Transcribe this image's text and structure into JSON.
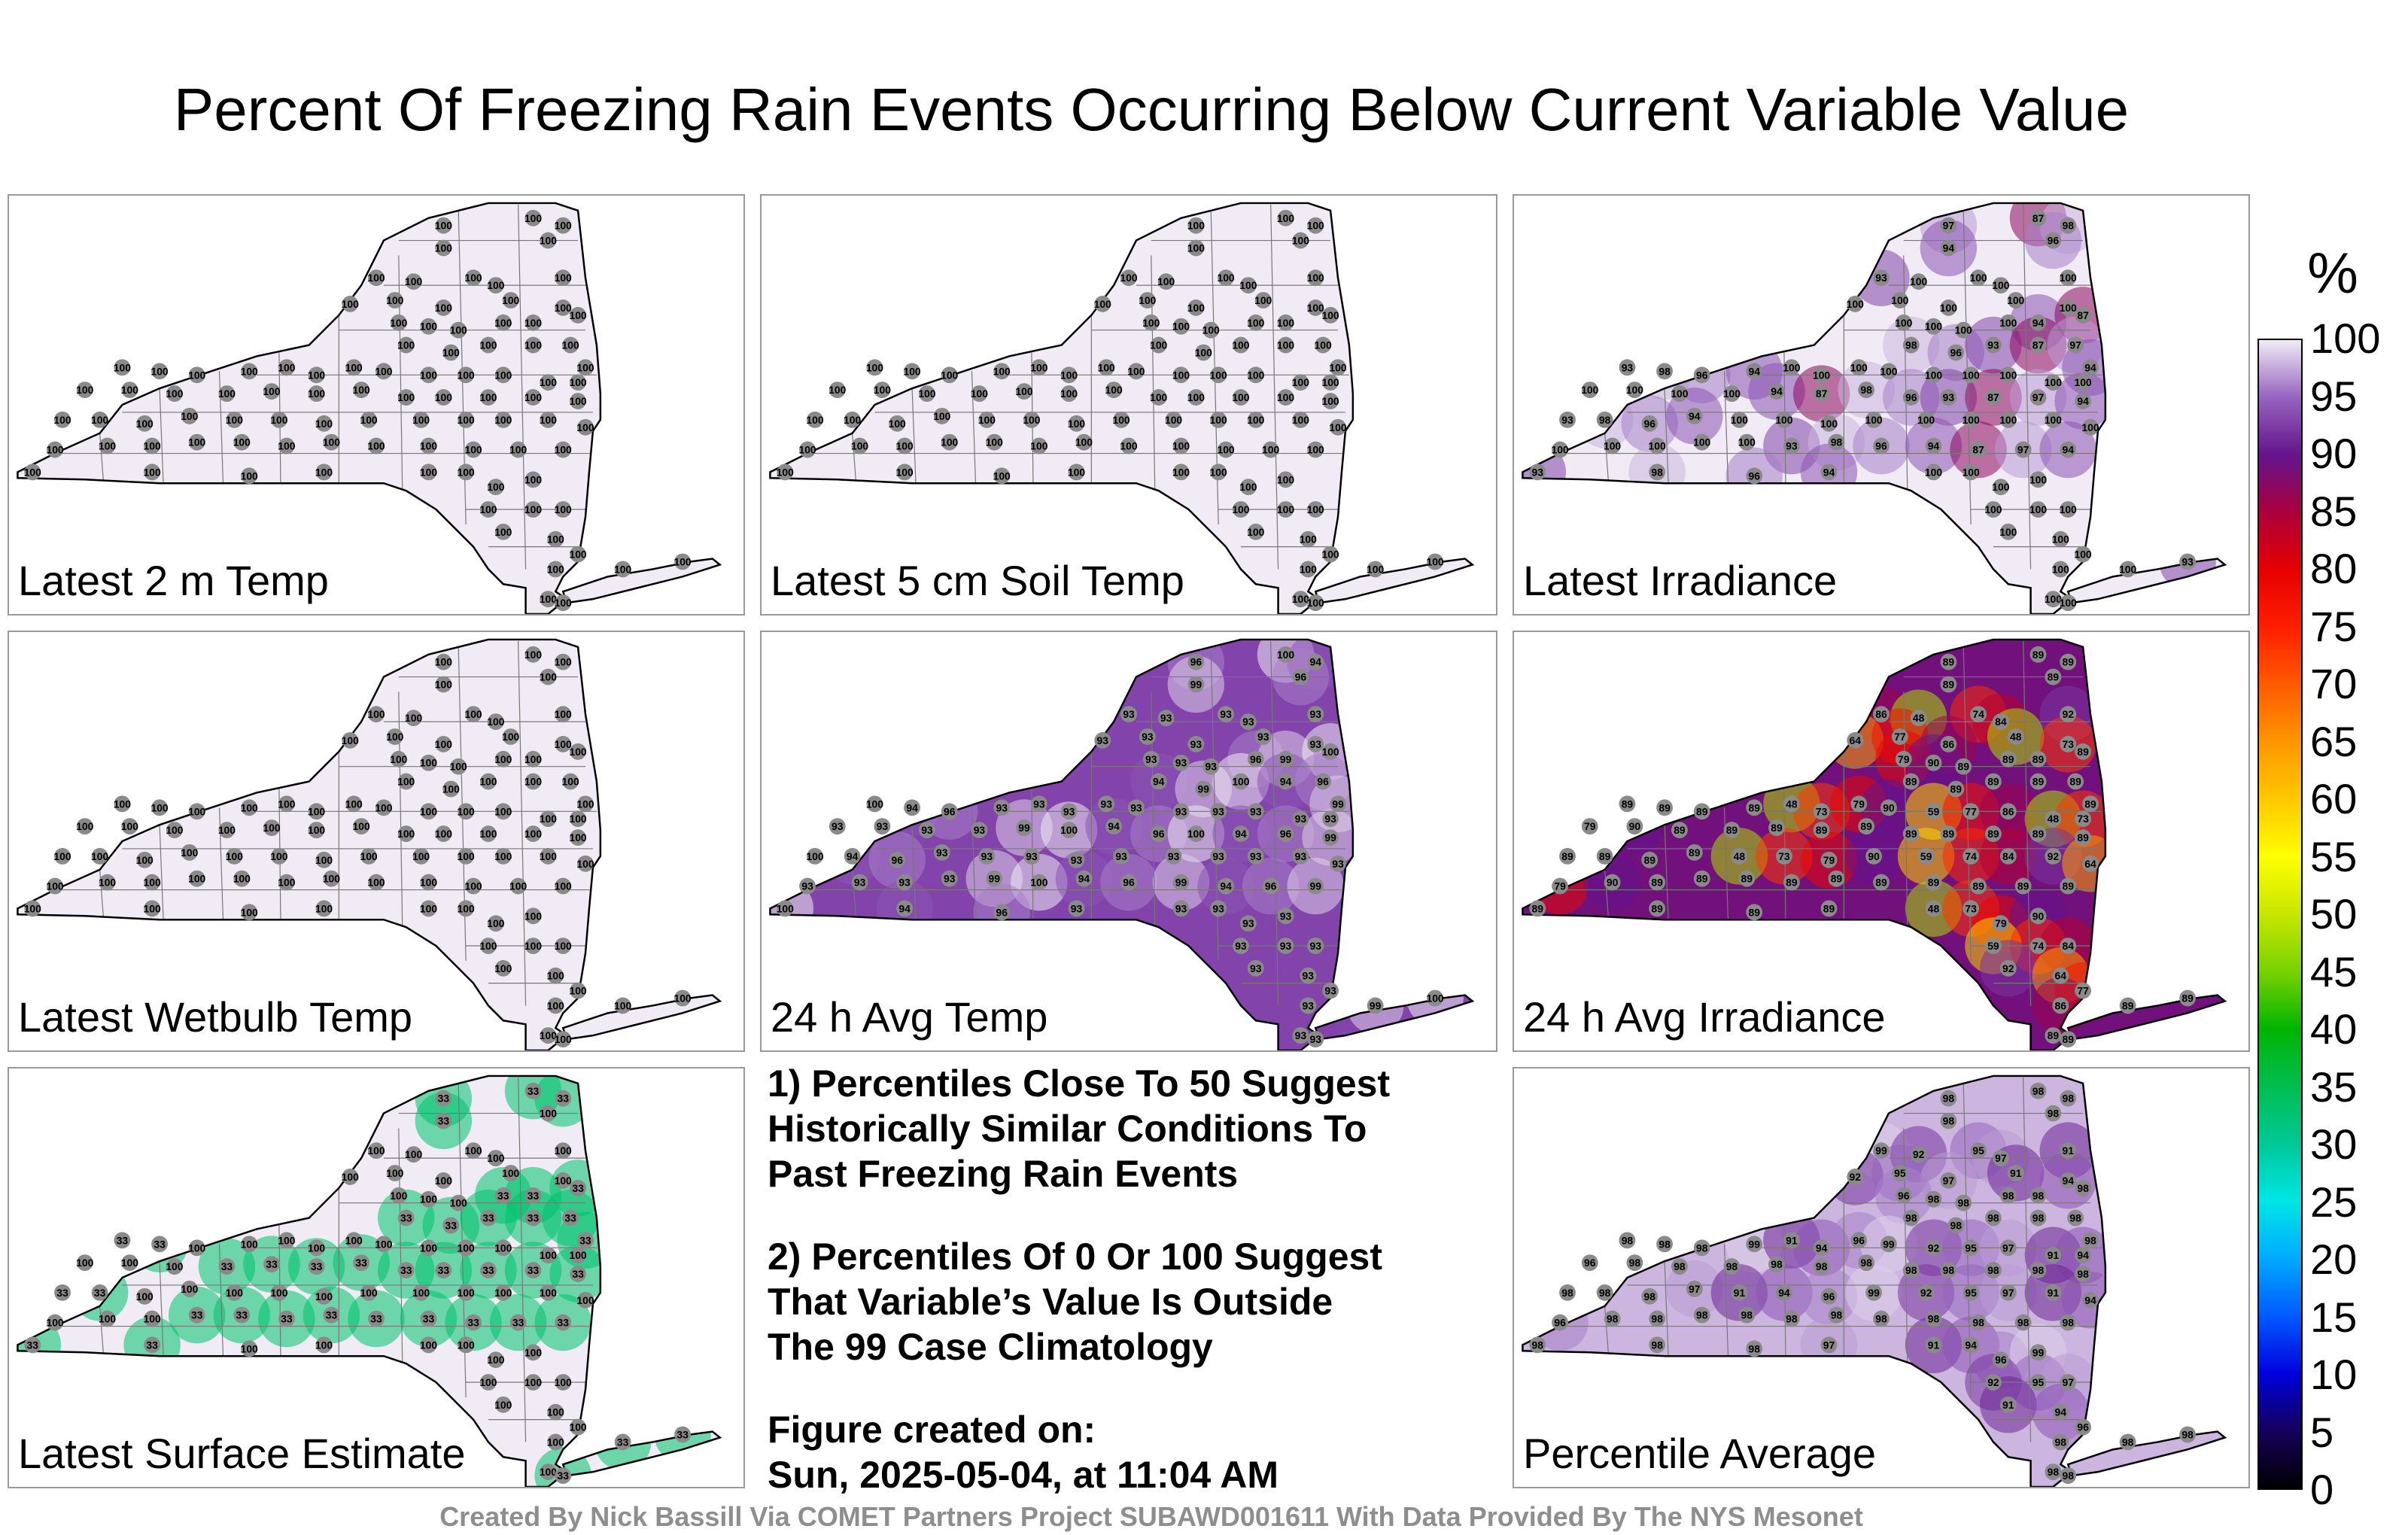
{
  "title": "Percent Of Freezing Rain Events Occurring Below Current Variable Value",
  "colors": {
    "background": "#ffffff",
    "state_fill_light": "#efe9f4",
    "state_fill_medium": "#c4a9d8",
    "state_fill_dark": "#8c5ab0",
    "station_marker": "#8a8a8a",
    "border": "#000000"
  },
  "panels": [
    {
      "label": "Latest 2 m Temp",
      "dominant_value": 100
    },
    {
      "label": "Latest 5 cm Soil Temp",
      "dominant_value": 100
    },
    {
      "label": "Latest Irradiance",
      "dominant_value": 100,
      "notable_values": [
        98,
        97,
        96,
        94,
        93,
        87
      ]
    },
    {
      "label": "Latest Wetbulb Temp",
      "dominant_value": 100
    },
    {
      "label": "24 h Avg Temp",
      "dominant_value": 93,
      "notable_values": [
        94,
        96,
        99,
        100
      ]
    },
    {
      "label": "24 h Avg Irradiance",
      "dominant_value": 89,
      "notable_values": [
        48,
        59,
        64,
        73,
        74,
        77,
        79,
        84,
        86,
        90,
        92
      ]
    },
    {
      "label": "Latest Surface Estimate",
      "dominant_value": 100,
      "notable_values": [
        33
      ]
    },
    {
      "label": "Percentile Average",
      "dominant_value": 98,
      "notable_values": [
        91,
        92,
        94,
        95,
        96,
        97,
        99
      ]
    }
  ],
  "notes": {
    "note1_line1": "1) Percentiles Close To 50 Suggest",
    "note1_line2": "Historically Similar Conditions To",
    "note1_line3": "Past Freezing Rain Events",
    "note2_line1": "2) Percentiles Of 0 Or 100 Suggest",
    "note2_line2": "That Variable’s Value Is Outside",
    "note2_line3": "The 99 Case Climatology",
    "created_label": "Figure created on:",
    "created_value": "Sun, 2025-05-04, at 11:04 AM"
  },
  "colorbar": {
    "unit": "%",
    "ticks": [
      "100",
      "95",
      "90",
      "85",
      "80",
      "75",
      "70",
      "65",
      "60",
      "55",
      "50",
      "45",
      "40",
      "35",
      "30",
      "25",
      "20",
      "15",
      "10",
      "5",
      "0"
    ],
    "range": [
      0,
      100
    ]
  },
  "credit": "Created By Nick Bassill Via COMET Partners Project SUBAWD001611 With Data Provided By The NYS Mesonet"
}
